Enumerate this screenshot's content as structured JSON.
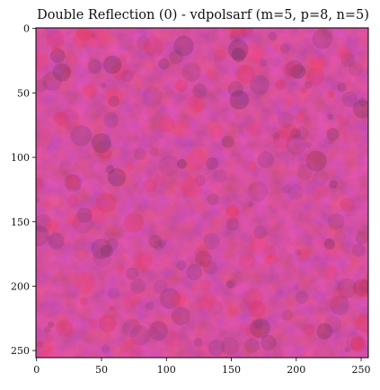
{
  "chart_data": {
    "type": "heatmap",
    "title": "Double Reflection (0) - vdpolsarf (m=5, p=8, n=5)",
    "xlabel": "",
    "ylabel": "",
    "image_shape": [
      256,
      256
    ],
    "xlim": [
      0,
      255
    ],
    "ylim": [
      255,
      0
    ],
    "xticks": [
      "0",
      "50",
      "100",
      "150",
      "200",
      "250"
    ],
    "yticks": [
      "0",
      "50",
      "100",
      "150",
      "200",
      "250"
    ],
    "colors": {
      "base": "#b1264f",
      "bright": "#e8304f",
      "dark": "#6a2c58",
      "purple": "#8a3a78",
      "accent": "#ff3a5a"
    },
    "texture": "mottled magenta-red noise with purple patches"
  }
}
